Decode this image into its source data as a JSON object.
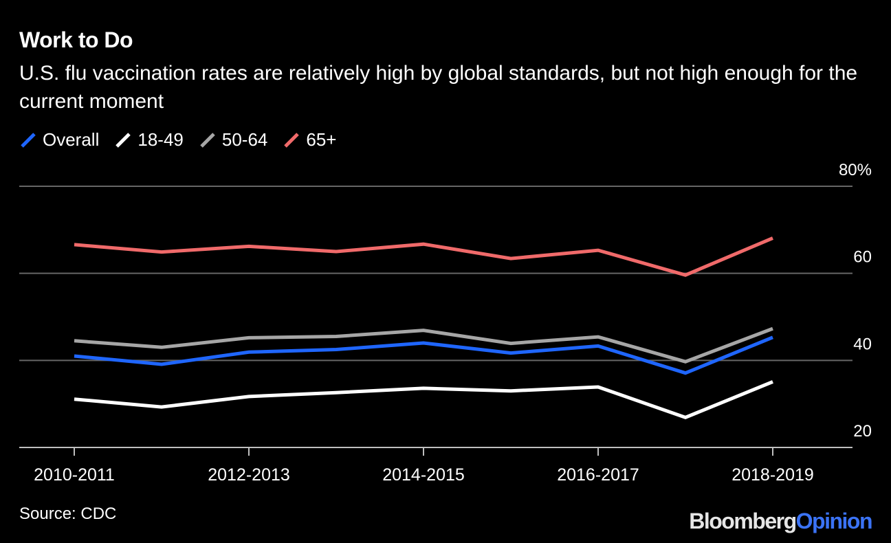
{
  "colors": {
    "background": "#000000",
    "gridline": "#666666",
    "text": "#ffffff"
  },
  "chart_data": {
    "type": "line",
    "title": "Work to Do",
    "subtitle": "U.S. flu vaccination rates are relatively high by global standards, but not high enough for the current moment",
    "x": [
      "2010-2011",
      "2011-2012",
      "2012-2013",
      "2013-2014",
      "2014-2015",
      "2015-2016",
      "2016-2017",
      "2017-2018",
      "2018-2019"
    ],
    "x_tick_labels": [
      "2010-2011",
      "2012-2013",
      "2014-2015",
      "2016-2017",
      "2018-2019"
    ],
    "y_tick_labels": [
      "80%",
      "60",
      "40",
      "20"
    ],
    "y_ticks": [
      80,
      60,
      40,
      20
    ],
    "ylim": [
      20,
      80
    ],
    "grid": true,
    "legend_position": "top-left",
    "series": [
      {
        "name": "Overall",
        "color": "#1f66ff",
        "values": [
          41.0,
          39.1,
          41.9,
          42.5,
          44.0,
          41.7,
          43.3,
          37.1,
          45.3
        ]
      },
      {
        "name": "18-49",
        "color": "#ffffff",
        "values": [
          31.1,
          29.3,
          31.7,
          32.6,
          33.6,
          33.0,
          33.9,
          26.9,
          35.1
        ]
      },
      {
        "name": "50-64",
        "color": "#a6a6a6",
        "values": [
          44.5,
          43.0,
          45.2,
          45.5,
          46.9,
          43.9,
          45.4,
          39.7,
          47.3
        ]
      },
      {
        "name": "65+",
        "color": "#f06a6a",
        "values": [
          66.6,
          64.9,
          66.2,
          65.0,
          66.7,
          63.4,
          65.3,
          59.6,
          68.1
        ]
      }
    ],
    "source": "Source: CDC"
  },
  "brand": {
    "part1": "Bloomberg",
    "part2": "Opinion"
  }
}
